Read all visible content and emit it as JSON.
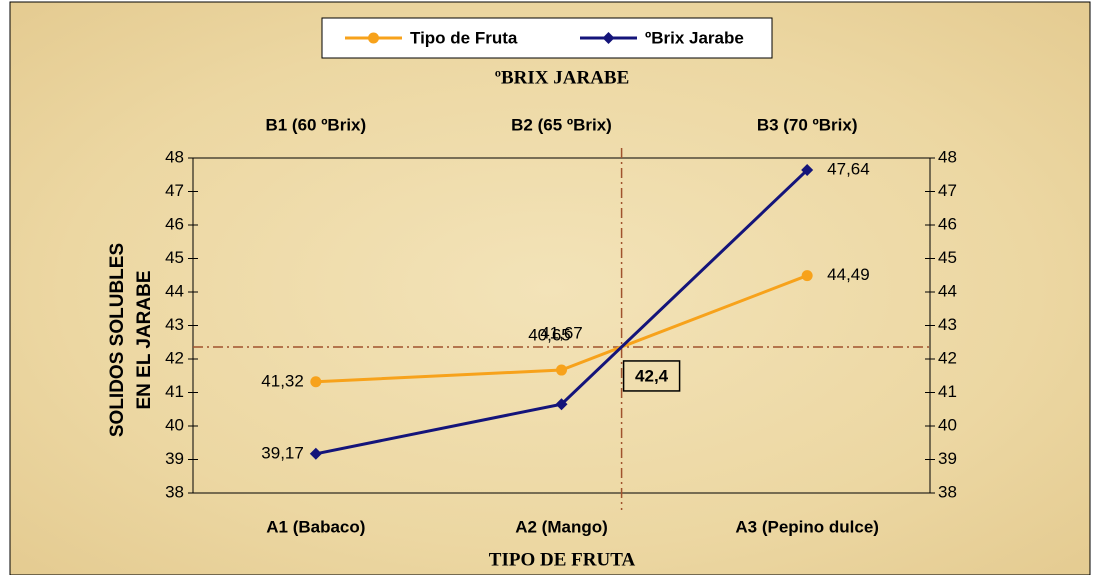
{
  "chart_data": {
    "type": "line",
    "title": "ºBRIX JARABE",
    "top_categories": [
      "B1 (60 ºBrix)",
      "B2 (65 ºBrix)",
      "B3 (70 ºBrix)"
    ],
    "x_label": "TIPO DE FRUTA",
    "y_label": [
      "SOLIDOS SOLUBLES",
      "EN EL JARABE"
    ],
    "categories": [
      "A1 (Babaco)",
      "A2 (Mango)",
      "A3 (Pepino dulce)"
    ],
    "series": [
      {
        "name": "Tipo de Fruta",
        "color": "#f7a21b",
        "values": [
          41.32,
          41.67,
          44.49
        ],
        "value_labels": [
          "41,32",
          "41,67",
          "44,49"
        ]
      },
      {
        "name": "ºBrix Jarabe",
        "color": "#14147a",
        "values": [
          39.17,
          40.65,
          47.64
        ],
        "value_labels": [
          "39,17",
          "40,65",
          "47,64"
        ]
      }
    ],
    "annotation": {
      "value": 42.4,
      "label": "42,4"
    },
    "ylim": [
      38,
      48
    ],
    "yticks": [
      38,
      39,
      40,
      41,
      42,
      43,
      44,
      45,
      46,
      47,
      48
    ],
    "legend": "top"
  }
}
